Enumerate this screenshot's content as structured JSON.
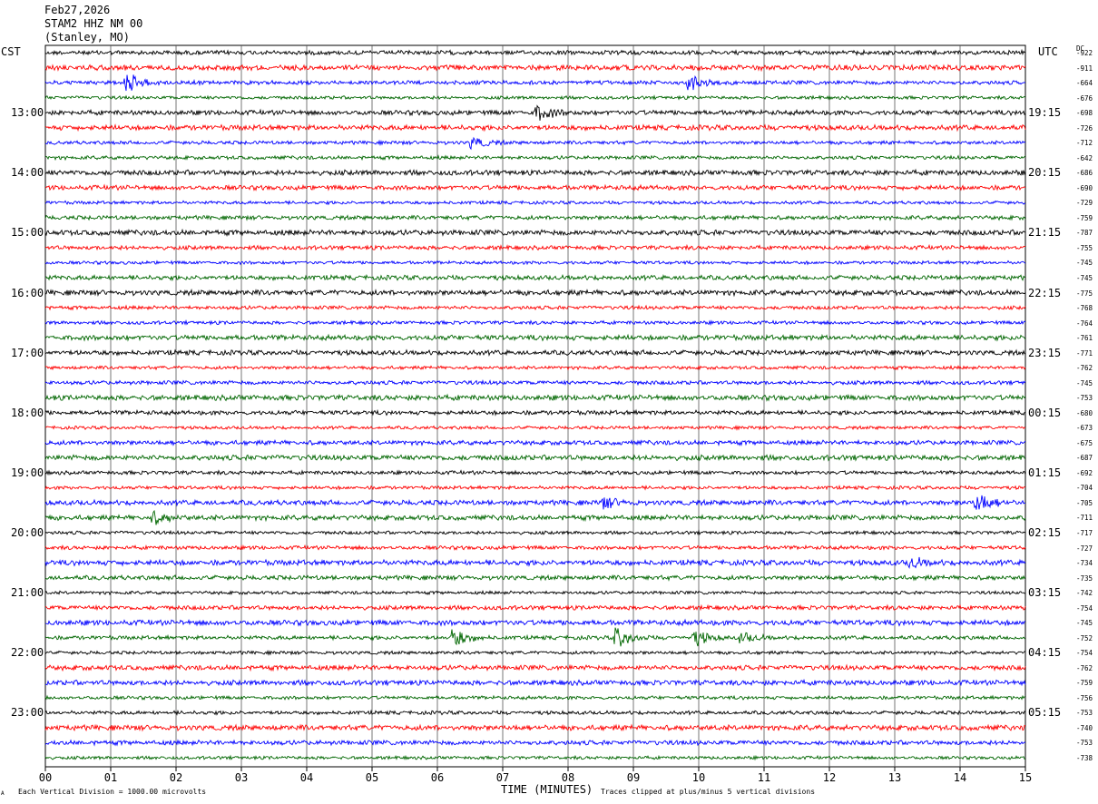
{
  "header": {
    "date": "Feb27,2026",
    "station": "STAM2 HHZ NM 00",
    "location": "(Stanley, MO)"
  },
  "left_axis_label": "CST",
  "right_axis_label": "UTC",
  "dc_label": "DC",
  "footer": {
    "x_title": "TIME (MINUTES)",
    "scale_note": "Each Vertical Division = 1000.00 microvolts",
    "clip_note": "Traces clipped at plus/minus 5 vertical divisions",
    "corner_mark": "A"
  },
  "colors": {
    "trace_cycle": [
      "#000000",
      "#ff0000",
      "#0000ff",
      "#006600"
    ],
    "grid": "#000000",
    "background": "#ffffff"
  },
  "chart_data": {
    "type": "line",
    "title": "STAM2 HHZ NM 00 (Stanley, MO) Feb27,2026",
    "xlabel": "TIME (MINUTES)",
    "x_ticks": [
      "00",
      "01",
      "02",
      "03",
      "04",
      "05",
      "06",
      "07",
      "08",
      "09",
      "10",
      "11",
      "12",
      "13",
      "14",
      "15"
    ],
    "xlim": [
      0,
      15
    ],
    "trace_count": 48,
    "traces_per_hour": 4,
    "trace_minutes": 15,
    "left_time_labels": [
      "13:00",
      "14:00",
      "15:00",
      "16:00",
      "17:00",
      "18:00",
      "19:00",
      "20:00",
      "21:00",
      "22:00",
      "23:00"
    ],
    "right_time_labels": [
      "19:15",
      "20:15",
      "21:15",
      "22:15",
      "23:15",
      "00:15",
      "01:15",
      "02:15",
      "03:15",
      "04:15",
      "05:15"
    ],
    "hour_label_first_trace": 4,
    "dc_offsets": [
      -922,
      -911,
      -664,
      -676,
      -698,
      -726,
      -712,
      -642,
      -686,
      -690,
      -729,
      -759,
      -787,
      -755,
      -745,
      -745,
      -775,
      -768,
      -764,
      -761,
      -771,
      -762,
      -745,
      -753,
      -680,
      -673,
      -675,
      -687,
      -692,
      -704,
      -705,
      -711,
      -717,
      -727,
      -734,
      -735,
      -742,
      -754,
      -745,
      -752,
      -754,
      -762,
      -759,
      -756,
      -753,
      -740,
      -753,
      -738
    ],
    "events": [
      {
        "trace": 2,
        "minute": 1.3,
        "amplitude": 2.2
      },
      {
        "trace": 2,
        "minute": 9.9,
        "amplitude": 1.8
      },
      {
        "trace": 4,
        "minute": 7.6,
        "amplitude": 2.0
      },
      {
        "trace": 6,
        "minute": 6.6,
        "amplitude": 1.4
      },
      {
        "trace": 30,
        "minute": 8.6,
        "amplitude": 1.3
      },
      {
        "trace": 30,
        "minute": 14.3,
        "amplitude": 2.6
      },
      {
        "trace": 31,
        "minute": 1.7,
        "amplitude": 1.4
      },
      {
        "trace": 34,
        "minute": 13.3,
        "amplitude": 1.2
      },
      {
        "trace": 39,
        "minute": 6.3,
        "amplitude": 2.4
      },
      {
        "trace": 39,
        "minute": 8.8,
        "amplitude": 2.6
      },
      {
        "trace": 39,
        "minute": 10.0,
        "amplitude": 1.8
      },
      {
        "trace": 39,
        "minute": 10.7,
        "amplitude": 1.3
      }
    ]
  }
}
